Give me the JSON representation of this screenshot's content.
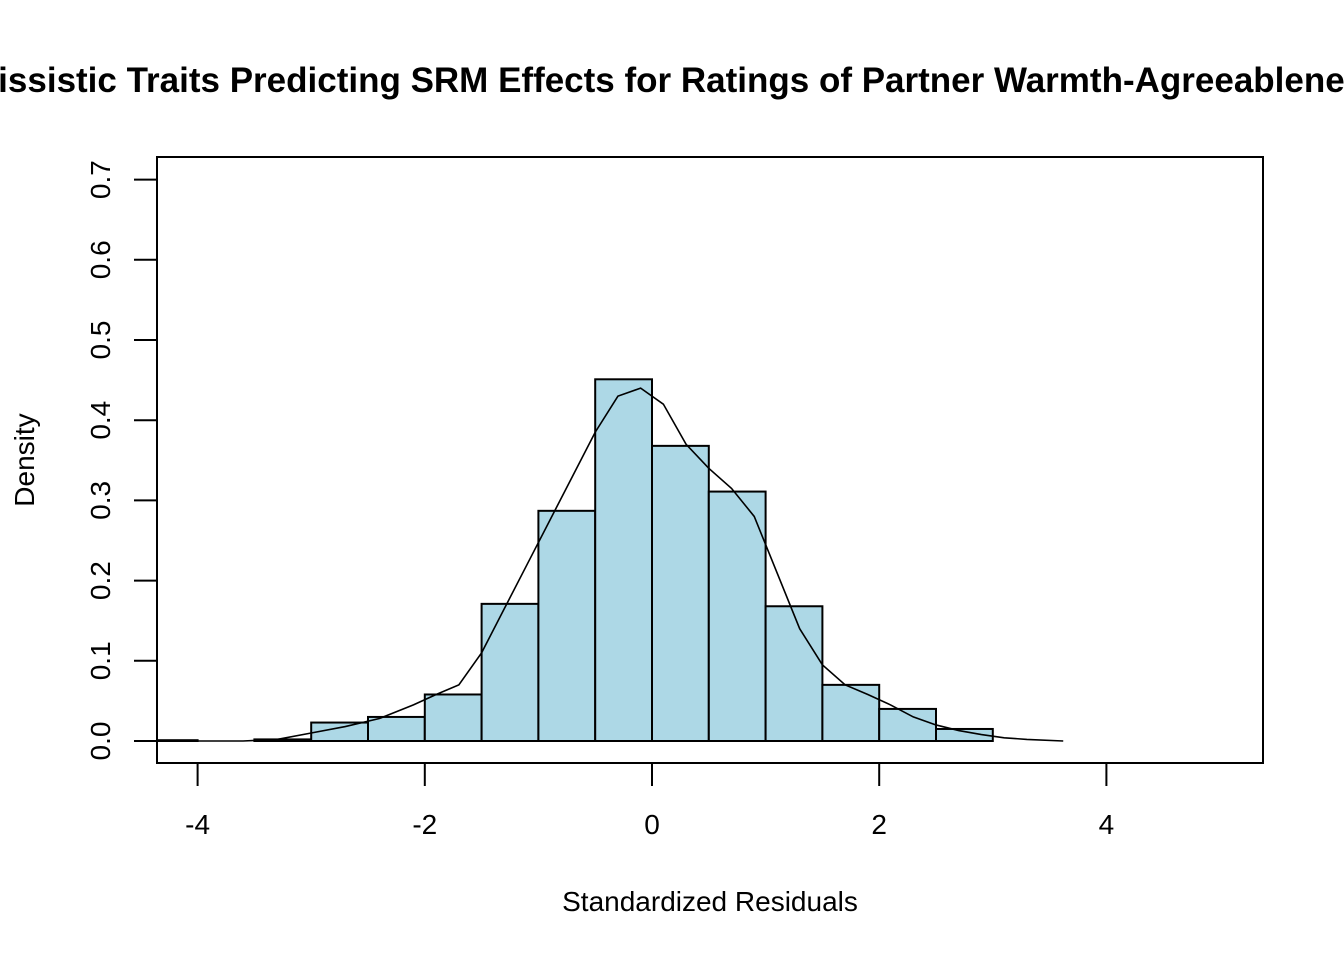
{
  "chart_data": {
    "type": "histogram",
    "title": "Narcissistic Traits Predicting SRM Effects for Ratings of Partner Warmth-Agreeableness",
    "xlabel": "Standardized Residuals",
    "ylabel": "Density",
    "xlim": [
      -4.36,
      5.4
    ],
    "ylim": [
      0,
      0.7
    ],
    "x_ticks": [
      "-4",
      "-2",
      "0",
      "2",
      "4"
    ],
    "y_ticks": [
      "0.0",
      "0.1",
      "0.2",
      "0.3",
      "0.4",
      "0.5",
      "0.6",
      "0.7"
    ],
    "bar_color": "#add8e6",
    "bins": [
      {
        "x0": -4.5,
        "x1": -4.0,
        "density": 0.001
      },
      {
        "x0": -3.5,
        "x1": -3.0,
        "density": 0.002
      },
      {
        "x0": -3.0,
        "x1": -2.5,
        "density": 0.023
      },
      {
        "x0": -2.5,
        "x1": -2.0,
        "density": 0.03
      },
      {
        "x0": -2.0,
        "x1": -1.5,
        "density": 0.058
      },
      {
        "x0": -1.5,
        "x1": -1.0,
        "density": 0.171
      },
      {
        "x0": -1.0,
        "x1": -0.5,
        "density": 0.287
      },
      {
        "x0": -0.5,
        "x1": 0.0,
        "density": 0.451
      },
      {
        "x0": 0.0,
        "x1": 0.5,
        "density": 0.368
      },
      {
        "x0": 0.5,
        "x1": 1.0,
        "density": 0.311
      },
      {
        "x0": 1.0,
        "x1": 1.5,
        "density": 0.168
      },
      {
        "x0": 1.5,
        "x1": 2.0,
        "density": 0.07
      },
      {
        "x0": 2.0,
        "x1": 2.5,
        "density": 0.04
      },
      {
        "x0": 2.5,
        "x1": 3.0,
        "density": 0.015
      }
    ],
    "density_curve": {
      "x": [
        -4.36,
        -4.0,
        -3.6,
        -3.3,
        -3.0,
        -2.7,
        -2.4,
        -2.1,
        -1.9,
        -1.7,
        -1.5,
        -1.3,
        -1.1,
        -0.9,
        -0.7,
        -0.5,
        -0.3,
        -0.1,
        0.1,
        0.3,
        0.5,
        0.7,
        0.9,
        1.1,
        1.3,
        1.5,
        1.7,
        1.9,
        2.1,
        2.3,
        2.5,
        2.7,
        2.9,
        3.1,
        3.3,
        3.62
      ],
      "y": [
        0.0,
        0.0,
        0.0,
        0.002,
        0.01,
        0.018,
        0.028,
        0.045,
        0.058,
        0.07,
        0.11,
        0.165,
        0.22,
        0.275,
        0.33,
        0.385,
        0.43,
        0.44,
        0.42,
        0.37,
        0.34,
        0.315,
        0.28,
        0.21,
        0.14,
        0.095,
        0.07,
        0.058,
        0.045,
        0.03,
        0.02,
        0.013,
        0.008,
        0.004,
        0.002,
        0.0
      ]
    }
  }
}
